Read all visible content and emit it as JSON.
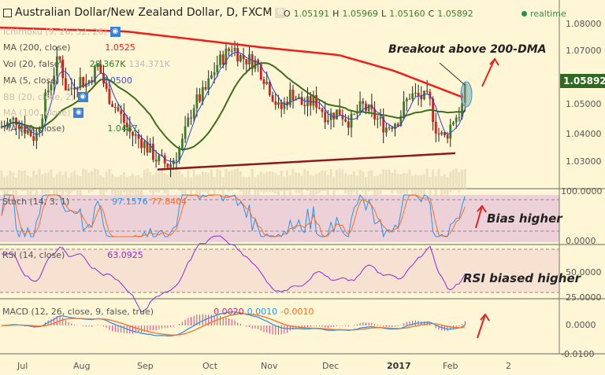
{
  "header": {
    "title": "Australian Dollar/New Zealand Dollar, D, FXCM",
    "ohlc": {
      "o_label": "O",
      "o": "1.05191",
      "h_label": "H",
      "h": "1.05969",
      "l_label": "L",
      "l": "1.05160",
      "c_label": "C",
      "c": "1.05892"
    },
    "status": "realtime"
  },
  "indicators": {
    "ichimoku": "Ichimoku (9, 26, 52, 26)",
    "ma200": "MA (200, close)",
    "ma200_val": "1.0525",
    "vol": "Vol (20, false)",
    "vol_val1": "28.367K",
    "vol_val2": "134.371K",
    "ma5": "MA (5, close)",
    "ma5_val": "1.0500",
    "bb": "BB (20, close, 2)",
    "ma100": "MA (100, close)",
    "ma20": "MA (20, close)",
    "ma20_val": "1.0487",
    "stoch": "Stoch (14, 3, 1)",
    "stoch_k": "97.1576",
    "stoch_d": "77.8404",
    "rsi": "RSI (14, close)",
    "rsi_val": "63.0925",
    "macd": "MACD (12, 26, close, 9, false, true)",
    "macd_hist": "0.0020",
    "macd_val": "0.0010",
    "macd_sig": "-0.0010"
  },
  "price_axis": [
    "1.08000",
    "1.07000",
    "1.05000",
    "1.04000",
    "1.03000"
  ],
  "current_price": "1.05892",
  "stoch_axis": [
    "100.0000",
    "0.0000"
  ],
  "rsi_axis": [
    "50.0000",
    "25.0000"
  ],
  "macd_axis": [
    "0.0000",
    "-0.0100"
  ],
  "time_axis": [
    "Jul",
    "Aug",
    "Sep",
    "Oct",
    "Nov",
    "Dec",
    "2017",
    "Feb",
    "2"
  ],
  "annotations": {
    "breakout": "Breakout above 200-DMA",
    "stoch": "Bias higher",
    "rsi": "RSI biased higher"
  },
  "colors": {
    "up": "#3a7d2c",
    "down": "#d62020",
    "ma200": "#ee1c1c",
    "ma20": "#3d6e1f",
    "ma5": "#2a3fe0",
    "stoch_k": "#2196f3",
    "stoch_d": "#ff6d1f",
    "rsi": "#8a2be2",
    "arrow": "#e82020"
  },
  "chart_data": {
    "type": "candlestick",
    "price_path": [
      [
        0,
        1.042
      ],
      [
        20,
        1.045
      ],
      [
        45,
        1.038
      ],
      [
        60,
        1.055
      ],
      [
        75,
        1.068
      ],
      [
        85,
        1.055
      ],
      [
        100,
        1.06
      ],
      [
        110,
        1.058
      ],
      [
        125,
        1.065
      ],
      [
        135,
        1.055
      ],
      [
        150,
        1.048
      ],
      [
        165,
        1.04
      ],
      [
        180,
        1.037
      ],
      [
        200,
        1.03
      ],
      [
        215,
        1.028
      ],
      [
        230,
        1.035
      ],
      [
        245,
        1.05
      ],
      [
        260,
        1.055
      ],
      [
        275,
        1.065
      ],
      [
        295,
        1.072
      ],
      [
        305,
        1.068
      ],
      [
        325,
        1.066
      ],
      [
        340,
        1.058
      ],
      [
        355,
        1.048
      ],
      [
        370,
        1.055
      ],
      [
        385,
        1.05
      ],
      [
        400,
        1.052
      ],
      [
        415,
        1.046
      ],
      [
        430,
        1.048
      ],
      [
        445,
        1.044
      ],
      [
        460,
        1.05
      ],
      [
        475,
        1.046
      ],
      [
        490,
        1.042
      ],
      [
        505,
        1.045
      ],
      [
        520,
        1.054
      ],
      [
        535,
        1.053
      ],
      [
        545,
        1.052
      ],
      [
        555,
        1.04
      ],
      [
        565,
        1.038
      ],
      [
        575,
        1.045
      ],
      [
        585,
        1.048
      ],
      [
        593,
        1.0589
      ]
    ],
    "ma200_path": [
      [
        0,
        1.0788
      ],
      [
        160,
        1.0774
      ],
      [
        330,
        1.0716
      ],
      [
        430,
        1.0687
      ],
      [
        500,
        1.0629
      ],
      [
        593,
        1.0525
      ]
    ],
    "trendline": [
      [
        200,
        1.0265
      ],
      [
        578,
        1.0325
      ]
    ],
    "ylim": [
      1.022,
      1.086
    ]
  }
}
